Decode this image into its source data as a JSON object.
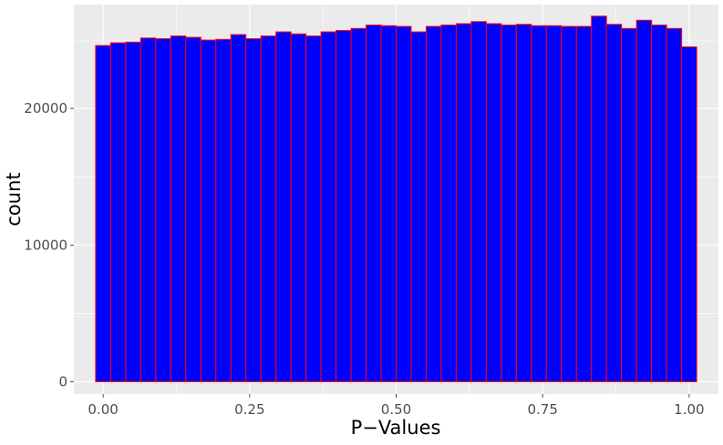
{
  "chart_data": {
    "type": "bar",
    "title": "",
    "xlabel": "P−Values",
    "ylabel": "count",
    "xlim": [
      -0.05,
      1.05
    ],
    "ylim": [
      -900,
      27600
    ],
    "x_ticks": [
      0.0,
      0.25,
      0.5,
      0.75,
      1.0
    ],
    "x_tick_labels": [
      "0.00",
      "0.25",
      "0.50",
      "0.75",
      "1.00"
    ],
    "y_ticks": [
      0,
      10000,
      20000
    ],
    "y_tick_labels": [
      "0",
      "10000",
      "20000"
    ],
    "grid": true,
    "legend": "none",
    "bin_width": 0.025641,
    "bin_centers": [
      0.0,
      0.025641,
      0.051282,
      0.076923,
      0.102564,
      0.128205,
      0.153846,
      0.179487,
      0.205128,
      0.230769,
      0.25641,
      0.282051,
      0.307692,
      0.333333,
      0.358974,
      0.384615,
      0.410256,
      0.435897,
      0.461538,
      0.487179,
      0.512821,
      0.538462,
      0.564103,
      0.589744,
      0.615385,
      0.641026,
      0.666667,
      0.692308,
      0.717949,
      0.74359,
      0.769231,
      0.794872,
      0.820513,
      0.846154,
      0.871795,
      0.897436,
      0.923077,
      0.948718,
      0.974359,
      1.0
    ],
    "values": [
      24600,
      24800,
      24850,
      25150,
      25100,
      25300,
      25200,
      25000,
      25050,
      25400,
      25100,
      25300,
      25600,
      25450,
      25300,
      25600,
      25700,
      25850,
      26100,
      26050,
      26000,
      25600,
      26000,
      26100,
      26200,
      26350,
      26200,
      26100,
      26150,
      26050,
      26050,
      26000,
      26000,
      26750,
      26150,
      25850,
      26450,
      26100,
      25850,
      24500
    ],
    "colors": {
      "fill": "#0000ff",
      "outline": "#ff0000",
      "panel": "#ebebeb",
      "grid": "#ffffff",
      "tick": "#4d4d4d"
    }
  }
}
